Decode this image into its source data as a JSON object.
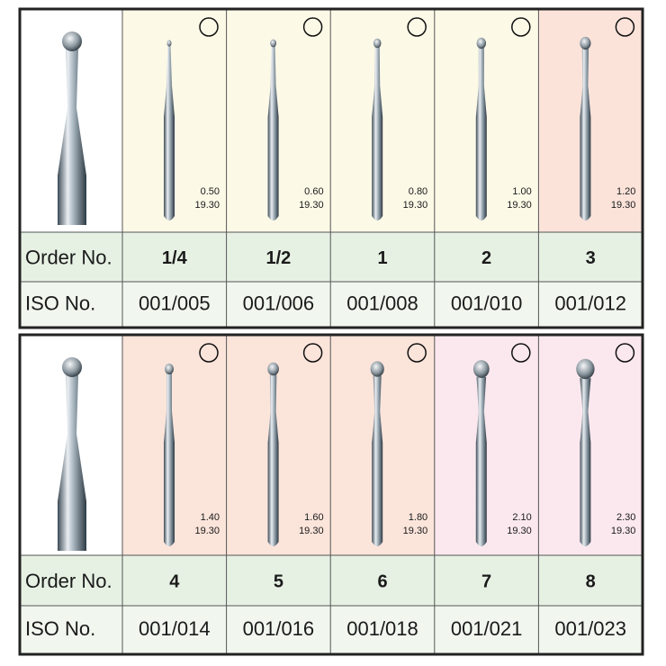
{
  "panels": [
    {
      "row_labels": {
        "order": "Order No.",
        "iso": "ISO No."
      },
      "items": [
        {
          "diameter": "0.50",
          "length": "19.30",
          "order": "1/4",
          "iso": "001/005"
        },
        {
          "diameter": "0.60",
          "length": "19.30",
          "order": "1/2",
          "iso": "001/006"
        },
        {
          "diameter": "0.80",
          "length": "19.30",
          "order": "1",
          "iso": "001/008"
        },
        {
          "diameter": "1.00",
          "length": "19.30",
          "order": "2",
          "iso": "001/010"
        },
        {
          "diameter": "1.20",
          "length": "19.30",
          "order": "3",
          "iso": "001/012"
        }
      ]
    },
    {
      "row_labels": {
        "order": "Order No.",
        "iso": "ISO No."
      },
      "items": [
        {
          "diameter": "1.40",
          "length": "19.30",
          "order": "4",
          "iso": "001/014"
        },
        {
          "diameter": "1.60",
          "length": "19.30",
          "order": "5",
          "iso": "001/016"
        },
        {
          "diameter": "1.80",
          "length": "19.30",
          "order": "6",
          "iso": "001/018"
        },
        {
          "diameter": "2.10",
          "length": "19.30",
          "order": "7",
          "iso": "001/021"
        },
        {
          "diameter": "2.30",
          "length": "19.30",
          "order": "8",
          "iso": "001/023"
        }
      ]
    }
  ]
}
